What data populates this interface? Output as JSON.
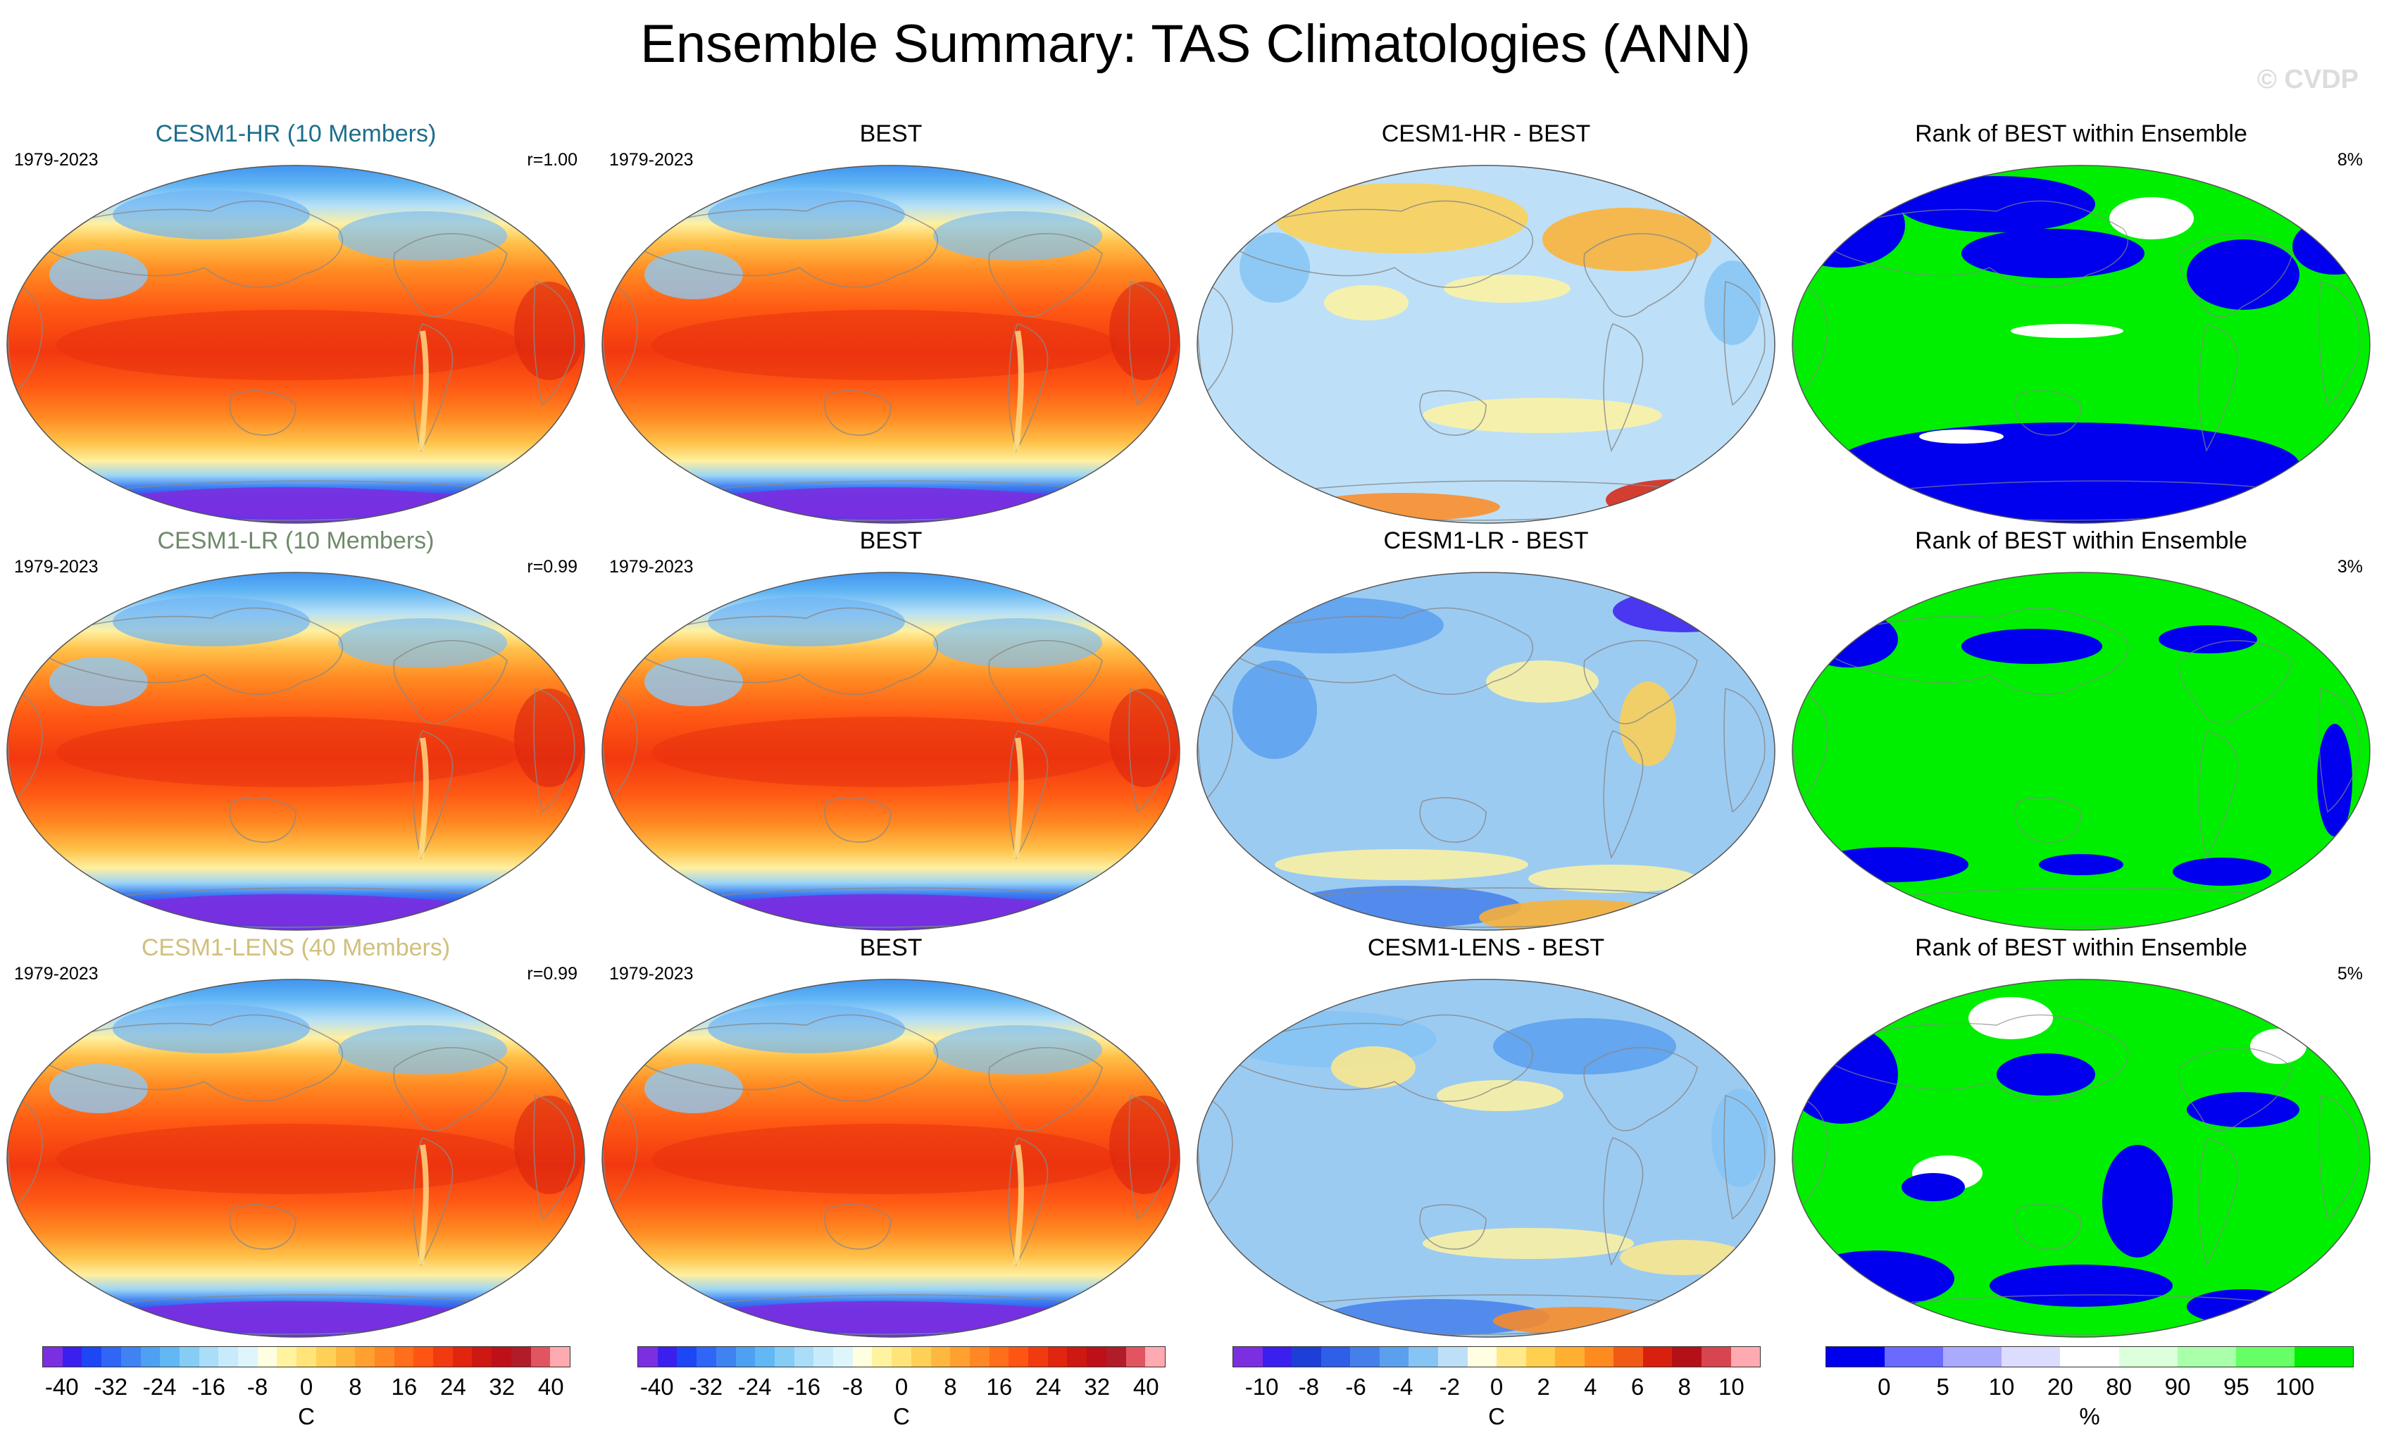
{
  "title": "Ensemble Summary: TAS Climatologies (ANN)",
  "watermark": "© CVDP",
  "colors": {
    "hr_title": "#1d6e8c",
    "lr_title": "#6f8a6a",
    "lens_title": "#d0c07c",
    "rank_blue": "#0000ee",
    "rank_green": "#00ee00",
    "rank_white": "#ffffff",
    "land_outline": "#888888"
  },
  "rows": [
    {
      "model_title": "CESM1-HR (10 Members)",
      "title_color_key": "hr_title",
      "period": "1979-2023",
      "correlation": "r=1.00",
      "obs_title": "BEST",
      "obs_period": "1979-2023",
      "diff_title": "CESM1-HR - BEST",
      "rank_title": "Rank of BEST within Ensemble",
      "rank_value": "8%"
    },
    {
      "model_title": "CESM1-LR (10 Members)",
      "title_color_key": "lr_title",
      "period": "1979-2023",
      "correlation": "r=0.99",
      "obs_title": "BEST",
      "obs_period": "1979-2023",
      "diff_title": "CESM1-LR - BEST",
      "rank_title": "Rank of BEST within Ensemble",
      "rank_value": "3%"
    },
    {
      "model_title": "CESM1-LENS (40 Members)",
      "title_color_key": "lens_title",
      "period": "1979-2023",
      "correlation": "r=0.99",
      "obs_title": "BEST",
      "obs_period": "1979-2023",
      "diff_title": "CESM1-LENS - BEST",
      "rank_title": "Rank of BEST within Ensemble",
      "rank_value": "5%"
    }
  ],
  "chart_data": [
    {
      "type": "heatmap",
      "name": "Model and observed TAS climatology colorbar",
      "unit": "C",
      "ticks": [
        "-40",
        "-32",
        "-24",
        "-16",
        "-8",
        "0",
        "8",
        "16",
        "24",
        "32",
        "40"
      ],
      "range": [
        -40,
        40
      ],
      "colors": [
        "#7b2fe0",
        "#3b1fef",
        "#1d46f5",
        "#2f66f5",
        "#3f82f2",
        "#4ea0f2",
        "#62b8f4",
        "#86cdf6",
        "#a9ddf8",
        "#c7ebfa",
        "#dff5fc",
        "#fffee0",
        "#fff3a0",
        "#ffe47a",
        "#ffd057",
        "#ffb83f",
        "#ffa030",
        "#ff8824",
        "#ff6e1a",
        "#ff5513",
        "#f23a10",
        "#e1250f",
        "#ce1812",
        "#bd1018",
        "#b11c28",
        "#e05560",
        "#ffaab0"
      ]
    },
    {
      "type": "heatmap",
      "name": "Difference (model - BEST) colorbar",
      "unit": "C",
      "ticks": [
        "-10",
        "-8",
        "-6",
        "-4",
        "-2",
        "0",
        "2",
        "4",
        "6",
        "8",
        "10"
      ],
      "range": [
        -10,
        10
      ],
      "colors": [
        "#7b2fe0",
        "#3b1fef",
        "#1d3fd8",
        "#2f5fe8",
        "#4580ea",
        "#5ba0ee",
        "#86c4f4",
        "#bde0f8",
        "#fffee0",
        "#ffe98a",
        "#ffd050",
        "#ffb030",
        "#ff8a20",
        "#f05a14",
        "#d8200e",
        "#b41018",
        "#d64550",
        "#ffaab0"
      ]
    },
    {
      "type": "heatmap",
      "name": "Rank of BEST within ensemble colorbar",
      "unit": "%",
      "ticks": [
        "0",
        "5",
        "10",
        "20",
        "80",
        "90",
        "95",
        "100"
      ],
      "range": [
        0,
        100
      ],
      "colors": [
        "#0000ee",
        "#6a6aff",
        "#aaaaff",
        "#dcdcff",
        "#ffffff",
        "#dcffdc",
        "#aaffaa",
        "#66ff66",
        "#00ee00"
      ]
    }
  ]
}
